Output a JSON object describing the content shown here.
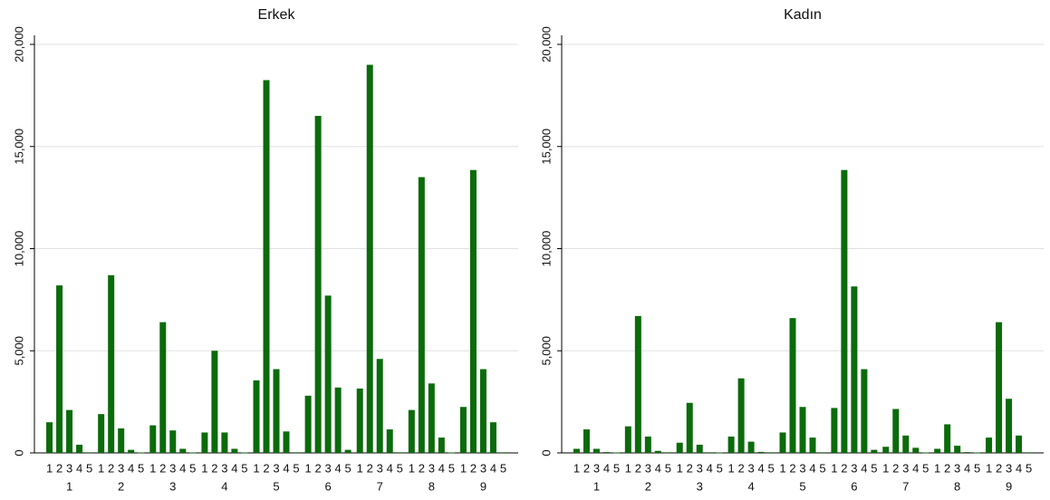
{
  "chart_data": [
    {
      "type": "bar",
      "title": "Erkek",
      "color": "#0b6b0b",
      "grid": true,
      "categories": [
        "1",
        "2",
        "3",
        "4",
        "5",
        "6",
        "7",
        "8",
        "9"
      ],
      "subcategories": [
        "1",
        "2",
        "3",
        "4",
        "5"
      ],
      "values": [
        [
          1500,
          8200,
          2100,
          400,
          30
        ],
        [
          1900,
          8700,
          1200,
          150,
          20
        ],
        [
          1350,
          6400,
          1100,
          200,
          20
        ],
        [
          1000,
          5000,
          1000,
          200,
          20
        ],
        [
          3550,
          18250,
          4100,
          1050,
          30
        ],
        [
          2800,
          16500,
          7700,
          3200,
          150
        ],
        [
          3150,
          19000,
          4600,
          1150,
          30
        ],
        [
          2100,
          13500,
          3400,
          750,
          20
        ],
        [
          2250,
          13850,
          4100,
          1500,
          30
        ]
      ],
      "ylim": [
        0,
        20000
      ],
      "yticks": [
        0,
        {
          "value": 5000,
          "label": "5,000"
        },
        {
          "value": 10000,
          "label": "10,000"
        },
        {
          "value": 15000,
          "label": "15,000"
        },
        {
          "value": 20000,
          "label": "20,000"
        }
      ]
    },
    {
      "type": "bar",
      "title": "Kadın",
      "color": "#0b6b0b",
      "grid": true,
      "categories": [
        "1",
        "2",
        "3",
        "4",
        "5",
        "6",
        "7",
        "8",
        "9"
      ],
      "subcategories": [
        "1",
        "2",
        "3",
        "4",
        "5"
      ],
      "values": [
        [
          200,
          1150,
          200,
          40,
          20
        ],
        [
          1300,
          6700,
          800,
          100,
          30
        ],
        [
          500,
          2450,
          400,
          30,
          20
        ],
        [
          800,
          3650,
          550,
          50,
          30
        ],
        [
          1000,
          6600,
          2250,
          750,
          30
        ],
        [
          2200,
          13850,
          8150,
          4100,
          150
        ],
        [
          300,
          2150,
          850,
          250,
          20
        ],
        [
          200,
          1400,
          350,
          40,
          20
        ],
        [
          750,
          6400,
          2650,
          850,
          30
        ]
      ],
      "ylim": [
        0,
        20000
      ],
      "yticks": [
        0,
        {
          "value": 5000,
          "label": "5,000"
        },
        {
          "value": 10000,
          "label": "10,000"
        },
        {
          "value": 15000,
          "label": "15,000"
        },
        {
          "value": 20000,
          "label": "20,000"
        }
      ]
    }
  ]
}
